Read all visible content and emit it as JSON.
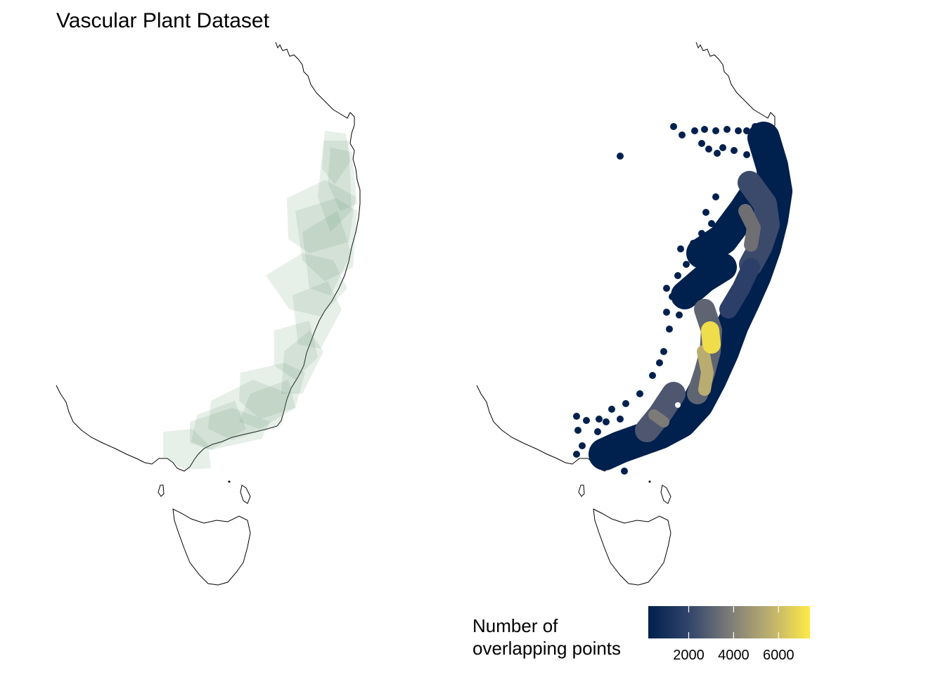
{
  "title": "Vascular Plant Dataset",
  "panels": [
    {
      "name": "left-map",
      "style": "translucent convex hulls",
      "fill_color": "#6a9e74"
    },
    {
      "name": "right-map",
      "style": "overlapping points colored by overlap count"
    }
  ],
  "legend": {
    "title_line1": "Number of",
    "title_line2": "overlapping points",
    "ticks": [
      "2000",
      "4000",
      "6000"
    ],
    "tick_values": [
      2000,
      4000,
      6000
    ],
    "range": [
      200,
      7400
    ],
    "colormap": "cividis",
    "color_low": "#00204d",
    "color_mid": "#7c7b78",
    "color_high": "#ffea46"
  }
}
